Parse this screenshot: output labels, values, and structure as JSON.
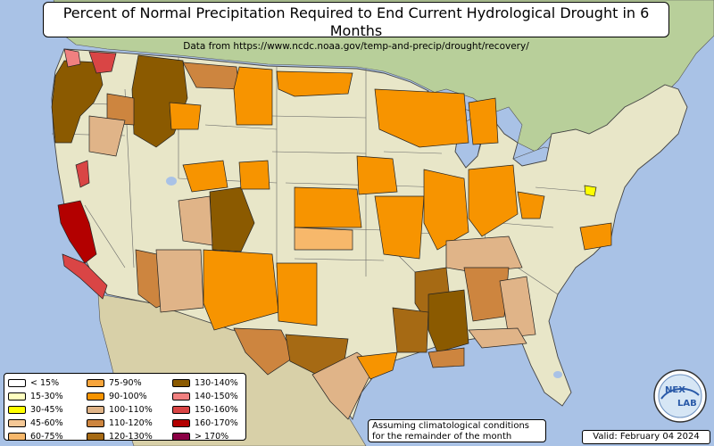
{
  "header": {
    "title": "Percent of Normal Precipitation Required to End Current Hydrological Drought in 6 Months",
    "subtitle": "Data from https://www.ncdc.noaa.gov/temp-and-precip/drought/recovery/"
  },
  "legend": {
    "items": [
      {
        "label": "< 15%",
        "color": "#ffffff"
      },
      {
        "label": "15-30%",
        "color": "#ffffc0"
      },
      {
        "label": "30-45%",
        "color": "#ffff00"
      },
      {
        "label": "45-60%",
        "color": "#f5c896"
      },
      {
        "label": "60-75%",
        "color": "#f7b86b"
      },
      {
        "label": "75-90%",
        "color": "#f7a53c"
      },
      {
        "label": "90-100%",
        "color": "#f79400"
      },
      {
        "label": "100-110%",
        "color": "#e0b488"
      },
      {
        "label": "110-120%",
        "color": "#cd853f"
      },
      {
        "label": "120-130%",
        "color": "#a66a14"
      },
      {
        "label": "130-140%",
        "color": "#8b5a00"
      },
      {
        "label": "140-150%",
        "color": "#f08080"
      },
      {
        "label": "150-160%",
        "color": "#d94545"
      },
      {
        "label": "160-170%",
        "color": "#b30000"
      },
      {
        "label": "> 170%",
        "color": "#8b0045"
      }
    ]
  },
  "note": {
    "line1": "Assuming climatological conditions",
    "line2": "for the remainder of the month"
  },
  "valid": "Valid: February 04 2024",
  "logo": {
    "text_top": "NEX",
    "text_bottom": "LAB"
  },
  "colors": {
    "ocean": "#a9c2e6",
    "land": "#e8e6c8",
    "canada": "#b8cf9a",
    "mexico": "#d8d0a8"
  }
}
